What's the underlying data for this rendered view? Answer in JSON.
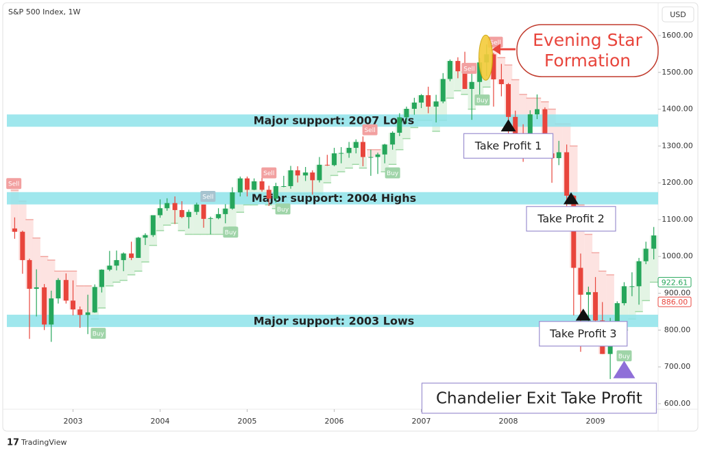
{
  "chart_data": {
    "type": "candlestick",
    "title": "S&P 500 Index, 1W",
    "currency": "USD",
    "brand": "TradingView",
    "up_color": "#26a65b",
    "down_color": "#e8453c",
    "xlim": [
      2002.24,
      2009.72
    ],
    "xticks": [
      2003,
      2004,
      2005,
      2006,
      2007,
      2008,
      2009
    ],
    "ylim": [
      585,
      1678
    ],
    "yticks": [
      {
        "value": 600,
        "label": "600.00"
      },
      {
        "value": 700,
        "label": "700.00"
      },
      {
        "value": 800,
        "label": "800.00"
      },
      {
        "value": 900,
        "label": "900.00"
      },
      {
        "value": 1000,
        "label": "1000.00"
      },
      {
        "value": 1100,
        "label": "1100.00"
      },
      {
        "value": 1200,
        "label": "1200.00"
      },
      {
        "value": 1300,
        "label": "1300.00"
      },
      {
        "value": 1400,
        "label": "1400.00"
      },
      {
        "value": 1500,
        "label": "1500.00"
      },
      {
        "value": 1600,
        "label": "1600.00"
      }
    ],
    "x": [
      2002.33,
      2002.42,
      2002.5,
      2002.58,
      2002.67,
      2002.75,
      2002.83,
      2002.92,
      2003.0,
      2003.08,
      2003.17,
      2003.25,
      2003.33,
      2003.42,
      2003.5,
      2003.58,
      2003.67,
      2003.75,
      2003.83,
      2003.92,
      2004.0,
      2004.08,
      2004.17,
      2004.25,
      2004.33,
      2004.42,
      2004.5,
      2004.58,
      2004.67,
      2004.75,
      2004.83,
      2004.92,
      2005.0,
      2005.08,
      2005.17,
      2005.25,
      2005.33,
      2005.42,
      2005.5,
      2005.58,
      2005.67,
      2005.75,
      2005.83,
      2005.92,
      2006.0,
      2006.08,
      2006.17,
      2006.25,
      2006.33,
      2006.42,
      2006.5,
      2006.58,
      2006.67,
      2006.75,
      2006.83,
      2006.92,
      2007.0,
      2007.08,
      2007.17,
      2007.25,
      2007.33,
      2007.42,
      2007.5,
      2007.58,
      2007.67,
      2007.75,
      2007.83,
      2007.92,
      2008.0,
      2008.08,
      2008.17,
      2008.25,
      2008.33,
      2008.42,
      2008.5,
      2008.58,
      2008.67,
      2008.75,
      2008.83,
      2008.92,
      2009.0,
      2009.08,
      2009.17,
      2009.25,
      2009.33,
      2009.42,
      2009.5,
      2009.58,
      2009.67
    ],
    "open": [
      1076,
      1067,
      990,
      912,
      916,
      815,
      886,
      936,
      880,
      856,
      841,
      848,
      917,
      964,
      975,
      990,
      1008,
      996,
      1051,
      1058,
      1112,
      1131,
      1145,
      1126,
      1107,
      1121,
      1141,
      1102,
      1104,
      1115,
      1130,
      1174,
      1212,
      1181,
      1204,
      1181,
      1157,
      1191,
      1191,
      1234,
      1220,
      1228,
      1207,
      1249,
      1248,
      1280,
      1281,
      1295,
      1311,
      1270,
      1270,
      1277,
      1304,
      1336,
      1378,
      1401,
      1418,
      1438,
      1407,
      1421,
      1482,
      1531,
      1503,
      1455,
      1474,
      1527,
      1549,
      1481,
      1468,
      1379,
      1331,
      1323,
      1386,
      1400,
      1280,
      1267,
      1283,
      1165,
      969,
      896,
      903,
      826,
      735,
      798,
      873,
      919,
      919,
      987,
      1021
    ],
    "high": [
      1106,
      1070,
      994,
      965,
      925,
      907,
      941,
      954,
      935,
      864,
      896,
      924,
      965,
      1015,
      1016,
      1011,
      1040,
      1053,
      1063,
      1112,
      1155,
      1158,
      1163,
      1150,
      1127,
      1146,
      1141,
      1108,
      1131,
      1142,
      1188,
      1217,
      1217,
      1212,
      1229,
      1192,
      1200,
      1219,
      1246,
      1245,
      1243,
      1234,
      1270,
      1276,
      1295,
      1297,
      1311,
      1318,
      1326,
      1290,
      1282,
      1306,
      1340,
      1389,
      1407,
      1431,
      1441,
      1461,
      1439,
      1498,
      1535,
      1541,
      1556,
      1504,
      1539,
      1576,
      1553,
      1523,
      1471,
      1396,
      1359,
      1397,
      1440,
      1405,
      1293,
      1314,
      1304,
      1167,
      1008,
      918,
      944,
      876,
      833,
      878,
      930,
      957,
      996,
      1040,
      1080
    ],
    "low": [
      1048,
      953,
      776,
      837,
      800,
      768,
      872,
      872,
      840,
      806,
      789,
      847,
      902,
      960,
      962,
      960,
      990,
      996,
      1031,
      1053,
      1105,
      1124,
      1088,
      1104,
      1076,
      1113,
      1078,
      1060,
      1101,
      1090,
      1127,
      1163,
      1163,
      1180,
      1176,
      1137,
      1146,
      1188,
      1184,
      1201,
      1205,
      1168,
      1201,
      1246,
      1245,
      1253,
      1268,
      1280,
      1245,
      1219,
      1224,
      1253,
      1290,
      1327,
      1360,
      1385,
      1403,
      1389,
      1364,
      1416,
      1476,
      1484,
      1455,
      1371,
      1439,
      1490,
      1407,
      1435,
      1271,
      1316,
      1257,
      1312,
      1373,
      1272,
      1200,
      1248,
      1107,
      840,
      741,
      815,
      805,
      735,
      667,
      784,
      867,
      892,
      869,
      979,
      992
    ],
    "close": [
      1067,
      990,
      912,
      916,
      815,
      886,
      936,
      880,
      856,
      841,
      848,
      917,
      964,
      975,
      990,
      1008,
      996,
      1051,
      1058,
      1112,
      1131,
      1145,
      1126,
      1107,
      1121,
      1141,
      1102,
      1104,
      1115,
      1130,
      1174,
      1212,
      1181,
      1204,
      1181,
      1157,
      1191,
      1191,
      1234,
      1220,
      1228,
      1207,
      1249,
      1248,
      1280,
      1281,
      1295,
      1311,
      1270,
      1270,
      1277,
      1304,
      1336,
      1378,
      1401,
      1418,
      1438,
      1407,
      1421,
      1482,
      1531,
      1503,
      1455,
      1474,
      1527,
      1549,
      1481,
      1468,
      1379,
      1331,
      1323,
      1386,
      1400,
      1280,
      1267,
      1283,
      1165,
      969,
      896,
      903,
      826,
      735,
      798,
      873,
      919,
      919,
      987,
      1021,
      1057
    ],
    "stop": [
      1180,
      1150,
      1100,
      1050,
      1000,
      990,
      960,
      960,
      960,
      920,
      920,
      830,
      860,
      920,
      930,
      935,
      950,
      960,
      985,
      1030,
      1070,
      1085,
      1090,
      1070,
      1060,
      1060,
      1060,
      1060,
      1060,
      1060,
      1080,
      1120,
      1140,
      1140,
      1150,
      1140,
      1130,
      1150,
      1160,
      1170,
      1170,
      1160,
      1170,
      1200,
      1220,
      1230,
      1240,
      1250,
      1240,
      1290,
      1290,
      1230,
      1250,
      1290,
      1320,
      1350,
      1370,
      1370,
      1340,
      1370,
      1430,
      1450,
      1440,
      1400,
      1420,
      1460,
      1560,
      1540,
      1520,
      1480,
      1440,
      1430,
      1430,
      1420,
      1400,
      1360,
      1360,
      1300,
      1140,
      1060,
      1010,
      960,
      950,
      780,
      800,
      830,
      850,
      880,
      930
    ],
    "supports": [
      {
        "label": "Major support: 2007 Lows",
        "value": 1369
      },
      {
        "label": "Major support: 2004 Highs",
        "value": 1158
      },
      {
        "label": "Major support: 2003 Lows",
        "value": 825
      }
    ],
    "support_color": "#8ee3ea",
    "take_profits": [
      {
        "label": "Take Profit 1",
        "x": 2008.0,
        "y": 1356
      },
      {
        "label": "Take Profit 2",
        "x": 2008.72,
        "y": 1158
      },
      {
        "label": "Take Profit 3",
        "x": 2008.86,
        "y": 842
      },
      {
        "label": "Chandelier Exit Take Profit",
        "x": 2009.33,
        "y": 693
      }
    ],
    "evening_star": {
      "lines": [
        "Evening Star",
        "Formation"
      ],
      "x": 2007.74,
      "y": 1540
    },
    "signals": [
      {
        "text": "Sell",
        "x": 2002.32,
        "y": 1198,
        "color": "#f2a0a0"
      },
      {
        "text": "Buy",
        "x": 2003.29,
        "y": 791,
        "color": "#9fd4a8"
      },
      {
        "text": "Sell",
        "x": 2004.55,
        "y": 1163,
        "color": "#a7c3cf"
      },
      {
        "text": "Buy",
        "x": 2004.81,
        "y": 1066,
        "color": "#9fd4a8"
      },
      {
        "text": "Buy",
        "x": 2005.41,
        "y": 1129,
        "color": "#9fd4a8"
      },
      {
        "text": "Sell",
        "x": 2005.25,
        "y": 1227,
        "color": "#f2a0a0"
      },
      {
        "text": "Sell",
        "x": 2006.41,
        "y": 1344,
        "color": "#f2a0a0"
      },
      {
        "text": "Buy",
        "x": 2006.67,
        "y": 1227,
        "color": "#9fd4a8"
      },
      {
        "text": "Sell",
        "x": 2007.55,
        "y": 1511,
        "color": "#f2a0a0"
      },
      {
        "text": "Buy",
        "x": 2007.7,
        "y": 1425,
        "color": "#9fd4a8"
      },
      {
        "text": "Sell",
        "x": 2007.85,
        "y": 1582,
        "color": "#f2a0a0"
      },
      {
        "text": "Buy",
        "x": 2009.33,
        "y": 730,
        "color": "#9fd4a8"
      }
    ],
    "price_tags": [
      {
        "value": 922.61,
        "label": "922.61",
        "color": "#26a65b"
      },
      {
        "value": 886,
        "label": "886.00",
        "color": "#e8453c"
      }
    ]
  }
}
